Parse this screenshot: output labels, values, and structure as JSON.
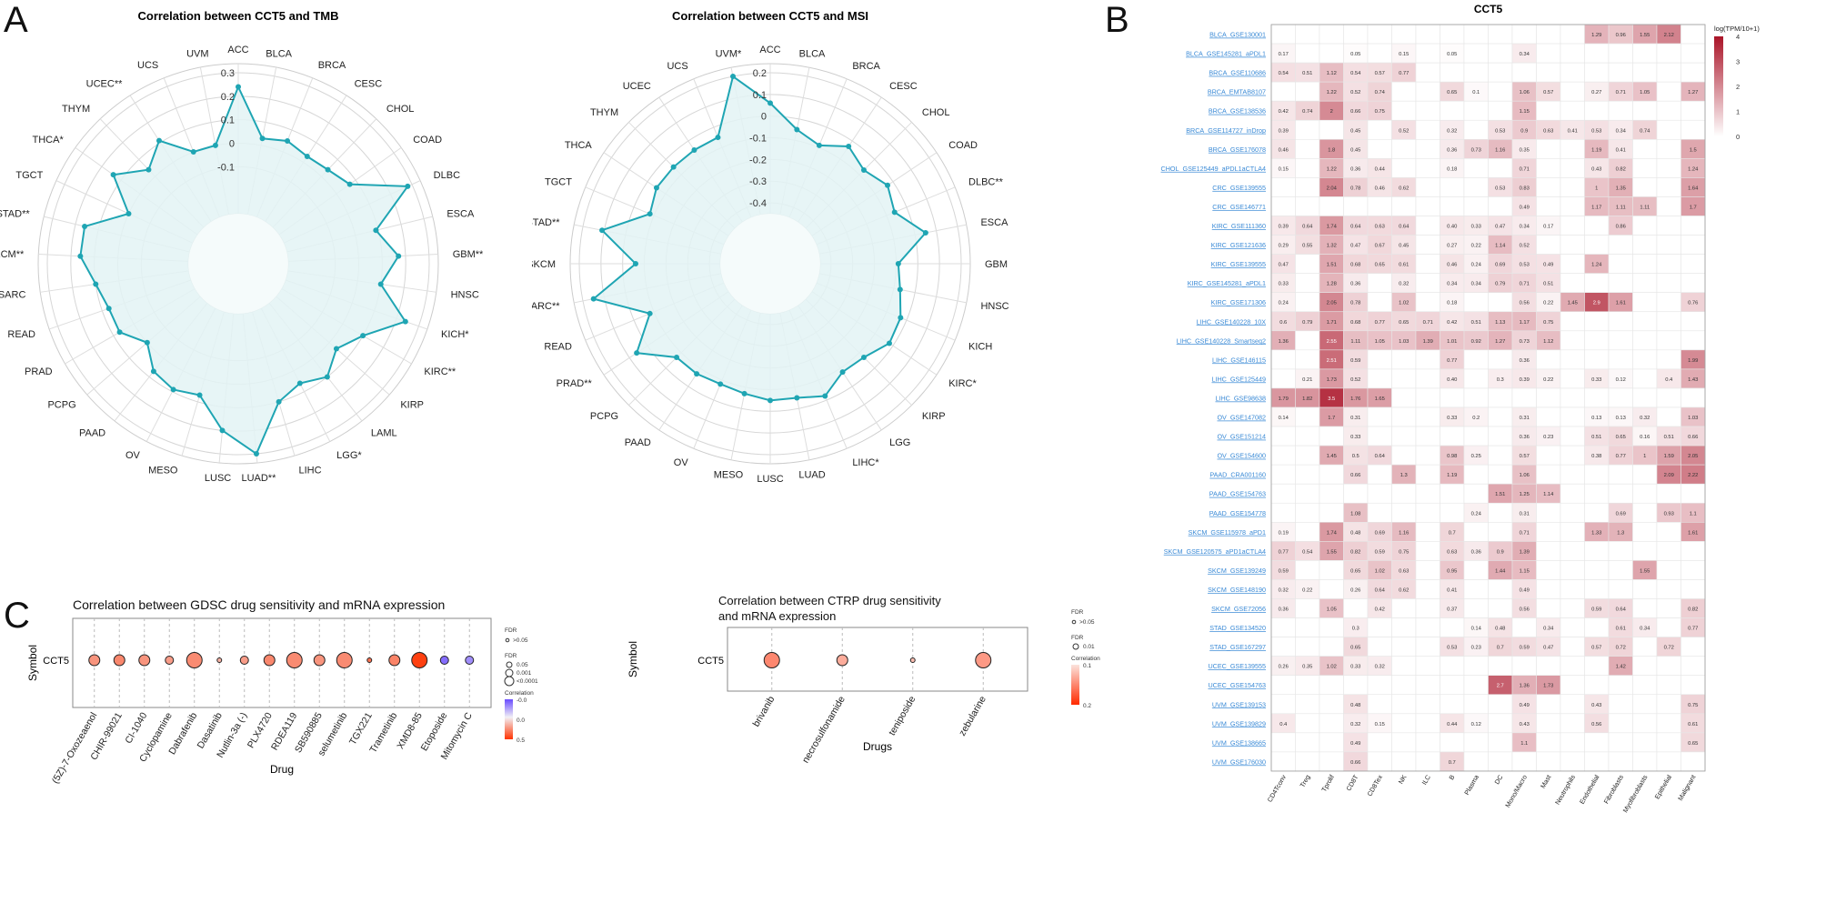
{
  "panel_labels": {
    "a": "A",
    "b": "B",
    "c": "C"
  },
  "chart_data": [
    {
      "type": "radar",
      "id": "tmb",
      "title": "Correlation between CCT5 and TMB",
      "color": "#1fa5b3",
      "fill": "#e3f3f4",
      "rlim": [
        -0.3,
        0.3
      ],
      "ring_labels": [
        "-0.1",
        "0",
        "0.1",
        "0.2",
        "0.3"
      ],
      "categories": [
        "ACC",
        "BLCA",
        "BRCA",
        "CESC",
        "CHOL",
        "COAD",
        "DLBC",
        "ESCA",
        "GBM**",
        "HNSC",
        "KICH*",
        "KIRC**",
        "KIRP",
        "LAML",
        "LGG*",
        "LIHC",
        "LUAD**",
        "LUSC",
        "MESO",
        "OV",
        "PAAD",
        "PCPG",
        "PRAD",
        "READ",
        "SARC",
        "SKCM**",
        "STAD**",
        "TGCT",
        "THCA*",
        "THYM",
        "UCEC**",
        "UCS",
        "UVM"
      ],
      "values": [
        0.24,
        0.03,
        0.05,
        0.03,
        0.04,
        0.07,
        0.28,
        0.09,
        0.17,
        0.1,
        0.24,
        0.1,
        0.04,
        0.1,
        0.06,
        0.1,
        0.3,
        0.2,
        0.07,
        0.09,
        0.07,
        0.0,
        0.07,
        0.07,
        0.1,
        0.16,
        0.16,
        0.0,
        0.14,
        0.04,
        0.11,
        0.0,
        0.0
      ]
    },
    {
      "type": "radar",
      "id": "msi",
      "title": "Correlation between CCT5 and MSI",
      "color": "#1fa5b3",
      "fill": "#e3f3f4",
      "rlim": [
        -0.45,
        0.2
      ],
      "ring_labels": [
        "-0.4",
        "-0.3",
        "-0.2",
        "-0.1",
        "0",
        "0.1",
        "0.2"
      ],
      "categories": [
        "ACC",
        "BLCA",
        "BRCA",
        "CESC",
        "CHOL",
        "COAD",
        "DLBC**",
        "ESCA",
        "GBM",
        "HNSC",
        "KICH",
        "KIRC*",
        "KIRP",
        "LGG",
        "LIHC*",
        "LUAD",
        "LUSC",
        "MESO",
        "OV",
        "PAAD",
        "PCPG",
        "PRAD**",
        "READ",
        "SARC**",
        "SKCM",
        "STAD**",
        "TGCT",
        "THCA",
        "THYM",
        "UCEC",
        "UCS",
        "UVM*"
      ],
      "values": [
        0.06,
        -0.05,
        -0.09,
        -0.03,
        -0.07,
        -0.03,
        -0.06,
        0.05,
        -0.09,
        -0.07,
        -0.03,
        -0.02,
        -0.07,
        -0.08,
        -0.02,
        -0.05,
        -0.05,
        -0.07,
        -0.08,
        -0.07,
        -0.07,
        0.06,
        -0.08,
        0.15,
        -0.06,
        0.11,
        -0.08,
        -0.05,
        -0.05,
        -0.05,
        -0.05,
        0.2
      ]
    },
    {
      "type": "heatmap",
      "id": "scrna",
      "title": "CCT5",
      "legend_title": "log(TPM/10+1)",
      "legend_ticks": [
        "4",
        "3",
        "2",
        "1",
        "0"
      ],
      "vmax": 4,
      "columns": [
        "CD4Tconv",
        "Treg",
        "Tprolif",
        "CD8T",
        "CD8Tex",
        "NK",
        "ILC",
        "B",
        "Plasma",
        "DC",
        "Mono/Macro",
        "Mast",
        "Neutrophils",
        "Endothelial",
        "Fibroblasts",
        "Myofibroblasts",
        "Epithelial",
        "Malignant"
      ],
      "rows": [
        {
          "name": "BLCA_GSE130001",
          "cells": {
            "Endothelial": "1.29",
            "Fibroblasts": "0.96",
            "Myofibroblasts": "1.55",
            "Epithelial": "2.12"
          }
        },
        {
          "name": "BLCA_GSE145281_aPDL1",
          "cells": {
            "CD4Tconv": "0.17",
            "CD8T": "0.05",
            "NK": "0.15",
            "B": "0.05",
            "Mono/Macro": "0.34"
          }
        },
        {
          "name": "BRCA_GSE110686",
          "cells": {
            "CD4Tconv": "0.54",
            "Treg": "0.51",
            "Tprolif": "1.12",
            "CD8T": "0.54",
            "CD8Tex": "0.57",
            "NK": "0.77"
          }
        },
        {
          "name": "BRCA_EMTAB8107",
          "cells": {
            "Tprolif": "1.22",
            "CD8T": "0.52",
            "CD8Tex": "0.74",
            "B": "0.65",
            "Plasma": "0.1",
            "Mono/Macro": "1.06",
            "Mast": "0.57",
            "Endothelial": "0.27",
            "Fibroblasts": "0.71",
            "Myofibroblasts": "1.05",
            "Malignant": "1.27"
          }
        },
        {
          "name": "BRCA_GSE138536",
          "cells": {
            "CD4Tconv": "0.42",
            "Treg": "0.74",
            "Tprolif": "2",
            "CD8T": "0.66",
            "CD8Tex": "0.75",
            "Mono/Macro": "1.15"
          }
        },
        {
          "name": "BRCA_GSE114727_inDrop",
          "cells": {
            "CD4Tconv": "0.39",
            "CD8T": "0.45",
            "NK": "0.52",
            "B": "0.32",
            "DC": "0.53",
            "Mono/Macro": "0.9",
            "Mast": "0.63",
            "Neutrophils": "0.41",
            "Endothelial": "0.53",
            "Fibroblasts": "0.34",
            "Myofibroblasts": "0.74"
          }
        },
        {
          "name": "BRCA_GSE176078",
          "cells": {
            "CD4Tconv": "0.46",
            "Tprolif": "1.8",
            "CD8T": "0.45",
            "B": "0.36",
            "Plasma": "0.73",
            "DC": "1.16",
            "Mono/Macro": "0.35",
            "Endothelial": "1.19",
            "Fibroblasts": "0.41",
            "Malignant": "1.5"
          }
        },
        {
          "name": "CHOL_GSE125449_aPDL1aCTLA4",
          "cells": {
            "CD4Tconv": "0.15",
            "Tprolif": "1.22",
            "CD8T": "0.36",
            "CD8Tex": "0.44",
            "B": "0.18",
            "Mono/Macro": "0.71",
            "Endothelial": "0.43",
            "Fibroblasts": "0.82",
            "Malignant": "1.24"
          }
        },
        {
          "name": "CRC_GSE139555",
          "cells": {
            "Tprolif": "2.04",
            "CD8T": "0.78",
            "CD8Tex": "0.46",
            "NK": "0.62",
            "DC": "0.53",
            "Mono/Macro": "0.83",
            "Endothelial": "1",
            "Fibroblasts": "1.35",
            "Malignant": "1.64"
          }
        },
        {
          "name": "CRC_GSE146771",
          "cells": {
            "Mono/Macro": "0.49",
            "Endothelial": "1.17",
            "Fibroblasts": "1.11",
            "Myofibroblasts": "1.11",
            "Malignant": "1.7"
          }
        },
        {
          "name": "KIRC_GSE111360",
          "cells": {
            "CD4Tconv": "0.39",
            "Treg": "0.64",
            "Tprolif": "1.74",
            "CD8T": "0.64",
            "CD8Tex": "0.63",
            "NK": "0.64",
            "B": "0.40",
            "Plasma": "0.33",
            "DC": "0.47",
            "Mono/Macro": "0.34",
            "Mast": "0.17",
            "Fibroblasts": "0.86"
          }
        },
        {
          "name": "KIRC_GSE121636",
          "cells": {
            "CD4Tconv": "0.29",
            "Treg": "0.55",
            "Tprolif": "1.32",
            "CD8T": "0.47",
            "CD8Tex": "0.67",
            "NK": "0.45",
            "B": "0.27",
            "Plasma": "0.22",
            "DC": "1.14",
            "Mono/Macro": "0.52"
          }
        },
        {
          "name": "KIRC_GSE139555",
          "cells": {
            "CD4Tconv": "0.47",
            "Tprolif": "1.51",
            "CD8T": "0.68",
            "CD8Tex": "0.65",
            "NK": "0.61",
            "B": "0.46",
            "Plasma": "0.24",
            "DC": "0.69",
            "Mono/Macro": "0.53",
            "Mast": "0.49",
            "Endothelial": "1.24"
          }
        },
        {
          "name": "KIRC_GSE145281_aPDL1",
          "cells": {
            "CD4Tconv": "0.33",
            "Tprolif": "1.28",
            "CD8T": "0.36",
            "NK": "0.32",
            "B": "0.34",
            "Plasma": "0.34",
            "DC": "0.79",
            "Mono/Macro": "0.71",
            "Mast": "0.51"
          }
        },
        {
          "name": "KIRC_GSE171306",
          "cells": {
            "CD4Tconv": "0.24",
            "Tprolif": "2.05",
            "CD8T": "0.78",
            "NK": "1.02",
            "B": "0.18",
            "Mono/Macro": "0.56",
            "Mast": "0.22",
            "Neutrophils": "1.45",
            "Endothelial": "2.9",
            "Fibroblasts": "1.61",
            "Malignant": "0.76"
          }
        },
        {
          "name": "LIHC_GSE140228_10X",
          "cells": {
            "CD4Tconv": "0.6",
            "Treg": "0.79",
            "Tprolif": "1.71",
            "CD8T": "0.68",
            "CD8Tex": "0.77",
            "NK": "0.65",
            "ILC": "0.71",
            "B": "0.42",
            "Plasma": "0.51",
            "DC": "1.13",
            "Mono/Macro": "1.17",
            "Mast": "0.75"
          }
        },
        {
          "name": "LIHC_GSE140228_Smartseq2",
          "cells": {
            "CD4Tconv": "1.36",
            "Tprolif": "2.55",
            "CD8T": "1.11",
            "CD8Tex": "1.05",
            "NK": "1.03",
            "ILC": "1.39",
            "B": "1.01",
            "Plasma": "0.92",
            "DC": "1.27",
            "Mono/Macro": "0.73",
            "Mast": "1.12"
          }
        },
        {
          "name": "LIHC_GSE146115",
          "cells": {
            "Tprolif": "2.51",
            "CD8T": "0.59",
            "B": "0.77",
            "Mono/Macro": "0.36",
            "Malignant": "1.99"
          }
        },
        {
          "name": "LIHC_GSE125449",
          "cells": {
            "Treg": "0.21",
            "Tprolif": "1.73",
            "CD8T": "0.52",
            "B": "0.40",
            "DC": "0.3",
            "Mono/Macro": "0.39",
            "Mast": "0.22",
            "Endothelial": "0.33",
            "Fibroblasts": "0.12",
            "Epithelial": "0.4",
            "Malignant": "1.43"
          }
        },
        {
          "name": "LIHC_GSE98638",
          "cells": {
            "CD4Tconv": "1.79",
            "Treg": "1.82",
            "Tprolif": "3.5",
            "CD8T": "1.76",
            "CD8Tex": "1.65"
          }
        },
        {
          "name": "OV_GSE147082",
          "cells": {
            "CD4Tconv": "0.14",
            "Tprolif": "1.7",
            "CD8T": "0.31",
            "B": "0.33",
            "Plasma": "0.2",
            "Mono/Macro": "0.31",
            "Endothelial": "0.13",
            "Fibroblasts": "0.13",
            "Myofibroblasts": "0.32",
            "Malignant": "1.03"
          }
        },
        {
          "name": "OV_GSE151214",
          "cells": {
            "CD8T": "0.33",
            "Mono/Macro": "0.36",
            "Mast": "0.23",
            "Endothelial": "0.51",
            "Fibroblasts": "0.65",
            "Myofibroblasts": "0.16",
            "Epithelial": "0.51",
            "Malignant": "0.66"
          }
        },
        {
          "name": "OV_GSE154600",
          "cells": {
            "Tprolif": "1.45",
            "CD8T": "0.5",
            "CD8Tex": "0.64",
            "B": "0.98",
            "Plasma": "0.25",
            "Mono/Macro": "0.57",
            "Endothelial": "0.38",
            "Fibroblasts": "0.77",
            "Myofibroblasts": "1",
            "Epithelial": "1.59",
            "Malignant": "2.05"
          }
        },
        {
          "name": "PAAD_CRA001160",
          "cells": {
            "CD8T": "0.66",
            "NK": "1.3",
            "B": "1.19",
            "Mono/Macro": "1.06",
            "Epithelial": "2.09",
            "Malignant": "2.22"
          }
        },
        {
          "name": "PAAD_GSE154763",
          "cells": {
            "DC": "1.51",
            "Mono/Macro": "1.25",
            "Mast": "1.14"
          }
        },
        {
          "name": "PAAD_GSE154778",
          "cells": {
            "CD8T": "1.08",
            "Plasma": "0.24",
            "Mono/Macro": "0.31",
            "Fibroblasts": "0.69",
            "Epithelial": "0.93",
            "Malignant": "1.1"
          }
        },
        {
          "name": "SKCM_GSE115978_aPD1",
          "cells": {
            "CD4Tconv": "0.19",
            "Tprolif": "1.74",
            "CD8T": "0.48",
            "CD8Tex": "0.69",
            "NK": "1.16",
            "B": "0.7",
            "Mono/Macro": "0.71",
            "Endothelial": "1.33",
            "Fibroblasts": "1.3",
            "Malignant": "1.61"
          }
        },
        {
          "name": "SKCM_GSE120575_aPD1aCTLA4",
          "cells": {
            "CD4Tconv": "0.77",
            "Treg": "0.54",
            "Tprolif": "1.55",
            "CD8T": "0.82",
            "CD8Tex": "0.59",
            "NK": "0.75",
            "B": "0.63",
            "Plasma": "0.36",
            "DC": "0.9",
            "Mono/Macro": "1.39"
          }
        },
        {
          "name": "SKCM_GSE139249",
          "cells": {
            "CD4Tconv": "0.59",
            "CD8T": "0.65",
            "CD8Tex": "1.02",
            "NK": "0.63",
            "B": "0.95",
            "DC": "1.44",
            "Mono/Macro": "1.15",
            "Myofibroblasts": "1.55"
          }
        },
        {
          "name": "SKCM_GSE148190",
          "cells": {
            "CD4Tconv": "0.32",
            "Treg": "0.22",
            "CD8T": "0.26",
            "CD8Tex": "0.64",
            "NK": "0.62",
            "B": "0.41",
            "Mono/Macro": "0.49"
          }
        },
        {
          "name": "SKCM_GSE72056",
          "cells": {
            "CD4Tconv": "0.36",
            "Tprolif": "1.05",
            "CD8Tex": "0.42",
            "B": "0.37",
            "Mono/Macro": "0.56",
            "Endothelial": "0.59",
            "Fibroblasts": "0.64",
            "Malignant": "0.82"
          }
        },
        {
          "name": "STAD_GSE134520",
          "cells": {
            "CD8T": "0.3",
            "Plasma": "0.14",
            "DC": "0.48",
            "Mast": "0.34",
            "Fibroblasts": "0.61",
            "Myofibroblasts": "0.34",
            "Malignant": "0.77"
          }
        },
        {
          "name": "STAD_GSE167297",
          "cells": {
            "CD8T": "0.65",
            "B": "0.53",
            "Plasma": "0.23",
            "DC": "0.7",
            "Mono/Macro": "0.59",
            "Mast": "0.47",
            "Endothelial": "0.57",
            "Fibroblasts": "0.72",
            "Epithelial": "0.72"
          }
        },
        {
          "name": "UCEC_GSE139555",
          "cells": {
            "CD4Tconv": "0.26",
            "Treg": "0.35",
            "Tprolif": "1.02",
            "CD8T": "0.33",
            "CD8Tex": "0.32",
            "Fibroblasts": "1.42"
          }
        },
        {
          "name": "UCEC_GSE154763",
          "cells": {
            "DC": "2.7",
            "Mono/Macro": "1.36",
            "Mast": "1.73"
          }
        },
        {
          "name": "UVM_GSE139153",
          "cells": {
            "CD8T": "0.48",
            "Mono/Macro": "0.49",
            "Endothelial": "0.43",
            "Malignant": "0.75"
          }
        },
        {
          "name": "UVM_GSE139829",
          "cells": {
            "CD4Tconv": "0.4",
            "CD8T": "0.32",
            "CD8Tex": "0.15",
            "B": "0.44",
            "Plasma": "0.12",
            "Mono/Macro": "0.43",
            "Endothelial": "0.56",
            "Malignant": "0.61"
          }
        },
        {
          "name": "UVM_GSE138665",
          "cells": {
            "CD8T": "0.49",
            "Mono/Macro": "1.1",
            "Malignant": "0.65"
          }
        },
        {
          "name": "UVM_GSE176030",
          "cells": {
            "CD8T": "0.66",
            "B": "0.7"
          }
        }
      ]
    },
    {
      "type": "bubble",
      "id": "gdsc",
      "title": "Correlation between GDSC drug sensitivity and mRNA expression",
      "xlabel": "Drug",
      "ylabel": "Symbol",
      "symbol": "CCT5",
      "legend": {
        "fdr_title": "FDR",
        "fdr_value": ">0.05",
        "size_title": "FDR",
        "size_labels": [
          "0.05",
          "0.001",
          "<0.0001"
        ],
        "color_title": "Correlation",
        "color_ticks": [
          "-0.0",
          "0.0",
          "0.5"
        ],
        "color_low": "#6a4cff",
        "color_mid": "#f2f0f5",
        "color_high": "#ff3300"
      },
      "points": [
        {
          "drug": "(5Z)-7-Oxozeaenol",
          "corr": 0.22,
          "fdr_level": 2
        },
        {
          "drug": "CHIR-99021",
          "corr": 0.25,
          "fdr_level": 2
        },
        {
          "drug": "CI-1040",
          "corr": 0.22,
          "fdr_level": 2
        },
        {
          "drug": "Cyclopamine",
          "corr": 0.2,
          "fdr_level": 1
        },
        {
          "drug": "Dabrafenib",
          "corr": 0.24,
          "fdr_level": 3
        },
        {
          "drug": "Dasatinib",
          "corr": 0.15,
          "fdr_level": 0
        },
        {
          "drug": "Nutlin-3a (-)",
          "corr": 0.2,
          "fdr_level": 1
        },
        {
          "drug": "PLX4720",
          "corr": 0.25,
          "fdr_level": 2
        },
        {
          "drug": "RDEA119",
          "corr": 0.24,
          "fdr_level": 3
        },
        {
          "drug": "SB590885",
          "corr": 0.22,
          "fdr_level": 2
        },
        {
          "drug": "selumetinib",
          "corr": 0.24,
          "fdr_level": 3
        },
        {
          "drug": "TGX221",
          "corr": 0.3,
          "fdr_level": 0
        },
        {
          "drug": "Trametinib",
          "corr": 0.26,
          "fdr_level": 2
        },
        {
          "drug": "XMD8-85",
          "corr": 0.42,
          "fdr_level": 3
        },
        {
          "drug": "Etoposide",
          "corr": -0.2,
          "fdr_level": 1
        },
        {
          "drug": "Mitomycin C",
          "corr": -0.15,
          "fdr_level": 1
        }
      ]
    },
    {
      "type": "bubble",
      "id": "ctrp",
      "title_lines": [
        "Correlation between CTRP drug sensitivity",
        "and mRNA expression"
      ],
      "xlabel": "Drugs",
      "ylabel": "Symbol",
      "symbol": "CCT5",
      "legend": {
        "fdr_title": "FDR",
        "fdr_value": ">0.05",
        "size_title": "FDR",
        "size_labels": [
          "0.01"
        ],
        "color_title": "Correlation",
        "color_ticks": [
          "0.1",
          "0.2"
        ],
        "color_low": "#fbe3dd",
        "color_high": "#ff2a00"
      },
      "points": [
        {
          "drug": "brivanib",
          "corr": 0.15,
          "fdr_level": 3
        },
        {
          "drug": "necrosulfonamide",
          "corr": 0.13,
          "fdr_level": 2
        },
        {
          "drug": "teniposide",
          "corr": 0.12,
          "fdr_level": 0
        },
        {
          "drug": "zebularine",
          "corr": 0.14,
          "fdr_level": 3
        }
      ]
    }
  ]
}
